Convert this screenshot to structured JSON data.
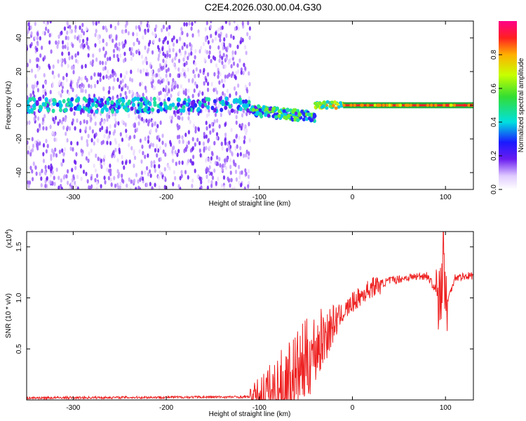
{
  "title": "C2E4.2026.030.00.04.G30",
  "chart_data": [
    {
      "type": "heatmap",
      "xlabel": "Height of straight line (km)",
      "ylabel": "Frequency (Hz)",
      "xlim": [
        -350,
        130
      ],
      "ylim": [
        -50,
        50
      ],
      "x_ticks": [
        -300,
        -200,
        -100,
        0,
        100
      ],
      "y_ticks": [
        -40,
        -20,
        0,
        20,
        40
      ],
      "colorbar": {
        "label": "Normalized spectral amplitude",
        "range": [
          0,
          1
        ],
        "ticks": [
          0.0,
          0.2,
          0.4,
          0.6,
          0.8
        ]
      },
      "regions": [
        {
          "name": "noise",
          "x_range": [
            -350,
            -110
          ],
          "y_range": [
            -50,
            50
          ],
          "amplitude": 0.15
        },
        {
          "name": "onset",
          "x_range": [
            -110,
            -40
          ],
          "y_center": -3,
          "amplitude": 0.5
        },
        {
          "name": "stable-signal",
          "x_range": [
            -10,
            130
          ],
          "y_center": 0,
          "amplitude": 0.95
        }
      ]
    },
    {
      "type": "line",
      "xlabel": "Height of straight line (km)",
      "ylabel": "SNR (10 * v/v)",
      "scale_label": "(x10",
      "scale_exp": "4",
      "scale_close": ")",
      "xlim": [
        -350,
        130
      ],
      "ylim": [
        0,
        1.65
      ],
      "x_ticks": [
        -300,
        -200,
        -100,
        0,
        100
      ],
      "y_ticks": [
        0.5,
        1.0,
        1.5
      ],
      "color": "#ee2222",
      "key_points": {
        "x": [
          -350,
          -110,
          -80,
          -60,
          -40,
          -20,
          0,
          20,
          40,
          60,
          80,
          95,
          98,
          100,
          110,
          130
        ],
        "y": [
          0.02,
          0.03,
          0.08,
          0.25,
          0.5,
          0.75,
          0.95,
          1.1,
          1.17,
          1.2,
          1.22,
          1.0,
          1.6,
          0.9,
          1.2,
          1.22
        ]
      }
    }
  ]
}
